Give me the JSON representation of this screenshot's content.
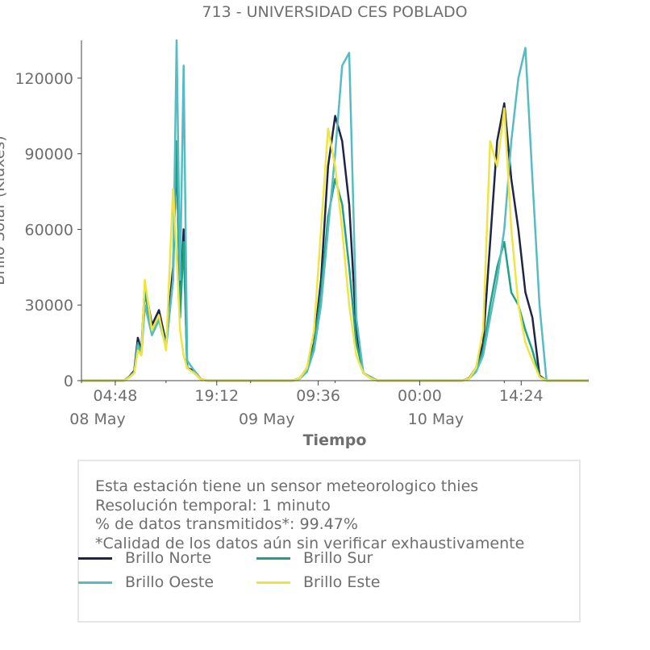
{
  "chart_data": {
    "type": "line",
    "title": "713 - UNIVERSIDAD CES POBLADO",
    "xlabel": "Tiempo",
    "ylabel": "Brillo Solar (Kluxes)",
    "ylim": [
      0,
      135000
    ],
    "yticks": [
      0,
      30000,
      60000,
      90000,
      120000
    ],
    "xlim": [
      "2023-05-08 00:00",
      "2023-05-10 23:59"
    ],
    "xticks": [
      {
        "time": "2023-05-08 04:48",
        "label": "04:48",
        "date_label": ""
      },
      {
        "time": "2023-05-08 19:12",
        "label": "19:12",
        "date_label": ""
      },
      {
        "time": "2023-05-09 09:36",
        "label": "09:36",
        "date_label": ""
      },
      {
        "time": "2023-05-10 00:00",
        "label": "00:00",
        "date_label": ""
      },
      {
        "time": "2023-05-10 14:24",
        "label": "14:24",
        "date_label": ""
      }
    ],
    "date_labels": [
      {
        "time": "2023-05-08 00:00",
        "label": "08 May"
      },
      {
        "time": "2023-05-09 00:00",
        "label": "09 May"
      },
      {
        "time": "2023-05-10 00:00",
        "label": "10 May"
      }
    ],
    "minor_ticks": [
      "2023-05-08 00:00",
      "2023-05-08 12:00",
      "2023-05-09 00:00",
      "2023-05-09 12:00",
      "2023-05-10 12:00"
    ],
    "legend_position": "below",
    "series": [
      {
        "name": "Brillo Norte",
        "color": "#1f2547",
        "x": [
          "2023-05-08 00:00",
          "2023-05-08 06:00",
          "2023-05-08 06:45",
          "2023-05-08 07:30",
          "2023-05-08 08:00",
          "2023-05-08 08:30",
          "2023-05-08 09:00",
          "2023-05-08 10:00",
          "2023-05-08 11:00",
          "2023-05-08 12:00",
          "2023-05-08 13:00",
          "2023-05-08 13:30",
          "2023-05-08 14:00",
          "2023-05-08 14:30",
          "2023-05-08 15:00",
          "2023-05-08 16:00",
          "2023-05-08 17:00",
          "2023-05-08 18:00",
          "2023-05-09 06:00",
          "2023-05-09 07:00",
          "2023-05-09 08:00",
          "2023-05-09 09:00",
          "2023-05-09 10:00",
          "2023-05-09 11:00",
          "2023-05-09 12:00",
          "2023-05-09 13:00",
          "2023-05-09 14:00",
          "2023-05-09 15:00",
          "2023-05-09 16:00",
          "2023-05-09 17:00",
          "2023-05-09 18:00",
          "2023-05-10 06:00",
          "2023-05-10 07:00",
          "2023-05-10 08:00",
          "2023-05-10 09:00",
          "2023-05-10 10:00",
          "2023-05-10 11:00",
          "2023-05-10 12:00",
          "2023-05-10 13:00",
          "2023-05-10 14:00",
          "2023-05-10 15:00",
          "2023-05-10 16:00",
          "2023-05-10 17:00",
          "2023-05-10 18:00",
          "2023-05-10 23:59"
        ],
        "y": [
          0,
          0,
          1500,
          4000,
          17000,
          12000,
          38000,
          22000,
          28000,
          15000,
          45000,
          90000,
          30000,
          60000,
          5000,
          4000,
          500,
          0,
          0,
          1000,
          5000,
          15000,
          40000,
          85000,
          105000,
          95000,
          70000,
          20000,
          3000,
          1500,
          0,
          0,
          1000,
          5000,
          15000,
          55000,
          95000,
          110000,
          80000,
          60000,
          35000,
          25000,
          2000,
          0,
          0
        ]
      },
      {
        "name": "Brillo Sur",
        "color": "#21a086",
        "x": [
          "2023-05-08 00:00",
          "2023-05-08 06:00",
          "2023-05-08 06:45",
          "2023-05-08 07:30",
          "2023-05-08 08:00",
          "2023-05-08 08:30",
          "2023-05-08 09:00",
          "2023-05-08 10:00",
          "2023-05-08 11:00",
          "2023-05-08 12:00",
          "2023-05-08 13:00",
          "2023-05-08 13:30",
          "2023-05-08 14:00",
          "2023-05-08 14:30",
          "2023-05-08 15:00",
          "2023-05-08 16:00",
          "2023-05-08 17:00",
          "2023-05-08 18:00",
          "2023-05-09 06:00",
          "2023-05-09 07:00",
          "2023-05-09 08:00",
          "2023-05-09 09:00",
          "2023-05-09 10:00",
          "2023-05-09 11:00",
          "2023-05-09 12:00",
          "2023-05-09 13:00",
          "2023-05-09 14:00",
          "2023-05-09 15:00",
          "2023-05-09 16:00",
          "2023-05-09 17:00",
          "2023-05-09 18:00",
          "2023-05-10 06:00",
          "2023-05-10 07:00",
          "2023-05-10 08:00",
          "2023-05-10 09:00",
          "2023-05-10 10:00",
          "2023-05-10 11:00",
          "2023-05-10 12:00",
          "2023-05-10 13:00",
          "2023-05-10 14:00",
          "2023-05-10 15:00",
          "2023-05-10 16:00",
          "2023-05-10 17:00",
          "2023-05-10 18:00",
          "2023-05-10 23:59"
        ],
        "y": [
          0,
          0,
          1500,
          3500,
          15000,
          11000,
          35000,
          20000,
          25000,
          14000,
          40000,
          95000,
          25000,
          55000,
          5000,
          3000,
          500,
          0,
          0,
          1000,
          4000,
          14000,
          35000,
          65000,
          80000,
          70000,
          45000,
          15000,
          3000,
          1000,
          0,
          0,
          800,
          4000,
          12000,
          30000,
          45000,
          55000,
          35000,
          30000,
          20000,
          12000,
          1500,
          0,
          0
        ]
      },
      {
        "name": "Brillo Oeste",
        "color": "#56bcc2",
        "x": [
          "2023-05-08 00:00",
          "2023-05-08 06:00",
          "2023-05-08 06:45",
          "2023-05-08 07:30",
          "2023-05-08 08:00",
          "2023-05-08 08:30",
          "2023-05-08 09:00",
          "2023-05-08 10:00",
          "2023-05-08 11:00",
          "2023-05-08 12:00",
          "2023-05-08 13:00",
          "2023-05-08 13:30",
          "2023-05-08 14:00",
          "2023-05-08 14:30",
          "2023-05-08 15:00",
          "2023-05-08 16:00",
          "2023-05-08 17:00",
          "2023-05-08 18:00",
          "2023-05-09 06:00",
          "2023-05-09 07:00",
          "2023-05-09 08:00",
          "2023-05-09 09:00",
          "2023-05-09 10:00",
          "2023-05-09 11:00",
          "2023-05-09 12:00",
          "2023-05-09 13:00",
          "2023-05-09 14:00",
          "2023-05-09 15:00",
          "2023-05-09 16:00",
          "2023-05-09 17:00",
          "2023-05-09 18:00",
          "2023-05-10 06:00",
          "2023-05-10 07:00",
          "2023-05-10 08:00",
          "2023-05-10 09:00",
          "2023-05-10 10:00",
          "2023-05-10 11:00",
          "2023-05-10 12:00",
          "2023-05-10 13:00",
          "2023-05-10 14:00",
          "2023-05-10 15:00",
          "2023-05-10 16:00",
          "2023-05-10 17:00",
          "2023-05-10 18:00",
          "2023-05-10 23:59"
        ],
        "y": [
          0,
          0,
          1200,
          3000,
          14000,
          10000,
          30000,
          18000,
          24000,
          13000,
          40000,
          135000,
          40000,
          125000,
          8000,
          4000,
          500,
          0,
          0,
          800,
          3500,
          12000,
          30000,
          60000,
          90000,
          125000,
          130000,
          25000,
          3000,
          1500,
          0,
          0,
          800,
          3500,
          10000,
          25000,
          40000,
          60000,
          95000,
          120000,
          132000,
          80000,
          30000,
          0,
          0
        ]
      },
      {
        "name": "Brillo Este",
        "color": "#f0e442",
        "x": [
          "2023-05-08 00:00",
          "2023-05-08 06:00",
          "2023-05-08 06:45",
          "2023-05-08 07:30",
          "2023-05-08 08:00",
          "2023-05-08 08:30",
          "2023-05-08 09:00",
          "2023-05-08 10:00",
          "2023-05-08 11:00",
          "2023-05-08 12:00",
          "2023-05-08 13:00",
          "2023-05-08 13:30",
          "2023-05-08 14:00",
          "2023-05-08 14:30",
          "2023-05-08 15:00",
          "2023-05-08 16:00",
          "2023-05-08 17:00",
          "2023-05-08 18:00",
          "2023-05-09 06:00",
          "2023-05-09 07:00",
          "2023-05-09 08:00",
          "2023-05-09 09:00",
          "2023-05-09 10:00",
          "2023-05-09 11:00",
          "2023-05-09 12:00",
          "2023-05-09 13:00",
          "2023-05-09 14:00",
          "2023-05-09 15:00",
          "2023-05-09 16:00",
          "2023-05-09 17:00",
          "2023-05-09 18:00",
          "2023-05-10 06:00",
          "2023-05-10 07:00",
          "2023-05-10 08:00",
          "2023-05-10 09:00",
          "2023-05-10 10:00",
          "2023-05-10 11:00",
          "2023-05-10 12:00",
          "2023-05-10 13:00",
          "2023-05-10 14:00",
          "2023-05-10 15:00",
          "2023-05-10 16:00",
          "2023-05-10 17:00",
          "2023-05-10 18:00",
          "2023-05-10 23:59"
        ],
        "y": [
          0,
          0,
          1200,
          3000,
          12000,
          10000,
          40000,
          20000,
          26000,
          12000,
          76000,
          50000,
          20000,
          10000,
          5000,
          3000,
          500,
          0,
          0,
          1000,
          5000,
          20000,
          60000,
          100000,
          85000,
          60000,
          30000,
          10000,
          3000,
          1000,
          0,
          0,
          800,
          5000,
          20000,
          95000,
          85000,
          108000,
          60000,
          30000,
          15000,
          8000,
          1500,
          0,
          0
        ]
      }
    ]
  },
  "info": {
    "line1": "Esta estación tiene un sensor meteorologico thies",
    "line2": "Resolución temporal: 1 minuto",
    "line3": "% de datos transmitidos*: 99.47%",
    "line4": "*Calidad de los datos aún sin verificar exhaustivamente"
  }
}
